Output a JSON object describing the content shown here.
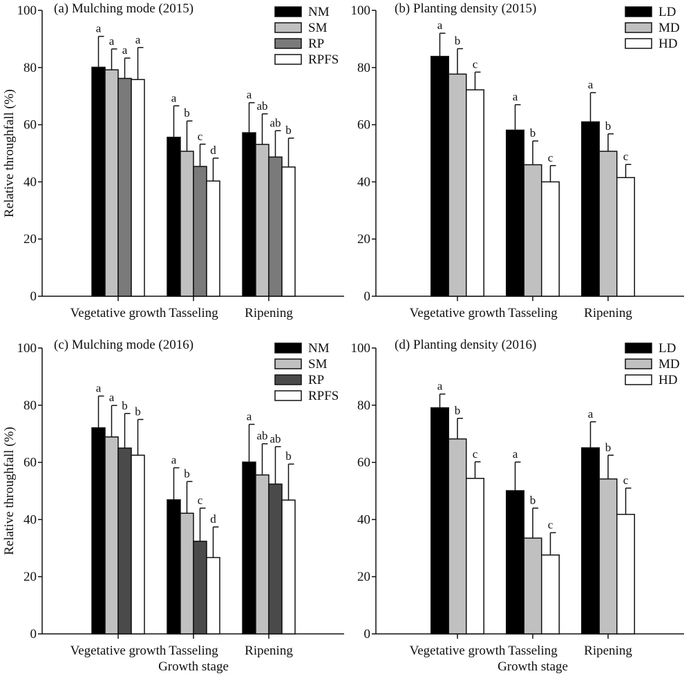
{
  "figure": {
    "ylabel": "Relative throughfall (%)",
    "xlabel": "Growth stage"
  },
  "chart_data": [
    {
      "type": "bar",
      "title": "(a) Mulching mode (2015)",
      "ylabel": "Relative throughfall (%)",
      "xlabel": "",
      "ylim": [
        0,
        100
      ],
      "yticks": [
        0,
        20,
        40,
        60,
        80,
        100
      ],
      "categories": [
        "Vegetative growth",
        "Tasseling",
        "Ripening"
      ],
      "legend_position": "top-right",
      "series": [
        {
          "name": "NM",
          "color": "#000000",
          "values": [
            80.1,
            55.6,
            57.2
          ],
          "errors": [
            10.8,
            11.0,
            10.5
          ],
          "letters": [
            "a",
            "a",
            "a"
          ]
        },
        {
          "name": "SM",
          "color": "#c0c0c0",
          "values": [
            79.2,
            50.7,
            53.1
          ],
          "errors": [
            7.3,
            10.6,
            10.7
          ],
          "letters": [
            "a",
            "b",
            "ab"
          ]
        },
        {
          "name": "RP",
          "color": "#7a7a7a",
          "values": [
            76.2,
            45.4,
            48.7
          ],
          "errors": [
            7.1,
            7.8,
            9.2
          ],
          "letters": [
            "a",
            "c",
            "ab"
          ]
        },
        {
          "name": "RPFS",
          "color": "#ffffff",
          "values": [
            75.8,
            40.3,
            45.2
          ],
          "errors": [
            11.2,
            8.0,
            10.1
          ],
          "letters": [
            "a",
            "d",
            "b"
          ]
        }
      ]
    },
    {
      "type": "bar",
      "title": "(b) Planting density (2015)",
      "ylabel": "",
      "xlabel": "",
      "ylim": [
        0,
        100
      ],
      "yticks": [
        0,
        20,
        40,
        60,
        80,
        100
      ],
      "categories": [
        "Vegetative growth",
        "Tasseling",
        "Ripening"
      ],
      "legend_position": "top-right",
      "series": [
        {
          "name": "LD",
          "color": "#000000",
          "values": [
            83.9,
            58.1,
            61.0
          ],
          "errors": [
            8.1,
            8.9,
            10.2
          ],
          "letters": [
            "a",
            "a",
            "a"
          ]
        },
        {
          "name": "MD",
          "color": "#c0c0c0",
          "values": [
            77.7,
            46.0,
            50.7
          ],
          "errors": [
            8.9,
            8.3,
            6.1
          ],
          "letters": [
            "b",
            "b",
            "b"
          ]
        },
        {
          "name": "HD",
          "color": "#ffffff",
          "values": [
            72.2,
            40.0,
            41.5
          ],
          "errors": [
            6.2,
            5.7,
            4.6
          ],
          "letters": [
            "c",
            "c",
            "c"
          ]
        }
      ]
    },
    {
      "type": "bar",
      "title": "(c) Mulching mode (2016)",
      "ylabel": "Relative throughfall (%)",
      "xlabel": "Growth stage",
      "ylim": [
        0,
        100
      ],
      "yticks": [
        0,
        20,
        40,
        60,
        80,
        100
      ],
      "categories": [
        "Vegetative growth",
        "Tasseling",
        "Ripening"
      ],
      "legend_position": "top-right",
      "series": [
        {
          "name": "NM",
          "color": "#000000",
          "values": [
            72.1,
            46.9,
            60.1
          ],
          "errors": [
            11.1,
            11.2,
            13.2
          ],
          "letters": [
            "a",
            "a",
            "a"
          ]
        },
        {
          "name": "SM",
          "color": "#c0c0c0",
          "values": [
            68.9,
            42.2,
            55.6
          ],
          "errors": [
            11.0,
            11.1,
            10.9
          ],
          "letters": [
            "a",
            "b",
            "ab"
          ]
        },
        {
          "name": "RP",
          "color": "#4a4a4a",
          "values": [
            65.0,
            32.4,
            52.4
          ],
          "errors": [
            12.1,
            11.6,
            13.1
          ],
          "letters": [
            "b",
            "c",
            "ab"
          ]
        },
        {
          "name": "RPFS",
          "color": "#ffffff",
          "values": [
            62.5,
            26.7,
            46.8
          ],
          "errors": [
            12.5,
            10.7,
            12.6
          ],
          "letters": [
            "b",
            "d",
            "b"
          ]
        }
      ]
    },
    {
      "type": "bar",
      "title": "(d) Planting density (2016)",
      "ylabel": "",
      "xlabel": "Growth stage",
      "ylim": [
        0,
        100
      ],
      "yticks": [
        0,
        20,
        40,
        60,
        80,
        100
      ],
      "categories": [
        "Vegetative growth",
        "Tasseling",
        "Ripening"
      ],
      "legend_position": "top-right",
      "series": [
        {
          "name": "LD",
          "color": "#000000",
          "values": [
            79.1,
            50.1,
            65.1
          ],
          "errors": [
            4.8,
            10.0,
            9.1
          ],
          "letters": [
            "a",
            "a",
            "a"
          ]
        },
        {
          "name": "MD",
          "color": "#c0c0c0",
          "values": [
            68.2,
            33.5,
            54.2
          ],
          "errors": [
            7.2,
            10.5,
            8.3
          ],
          "letters": [
            "b",
            "b",
            "b"
          ]
        },
        {
          "name": "HD",
          "color": "#ffffff",
          "values": [
            54.4,
            27.6,
            41.8
          ],
          "errors": [
            5.8,
            7.8,
            9.2
          ],
          "letters": [
            "c",
            "c",
            "c"
          ]
        }
      ]
    }
  ]
}
